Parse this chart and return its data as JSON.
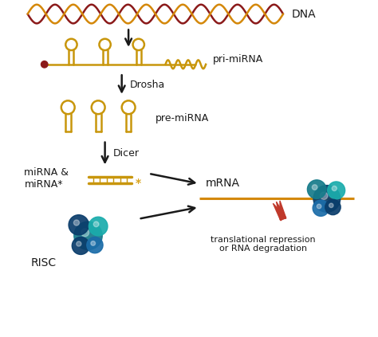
{
  "background_color": "#ffffff",
  "fig_width": 4.74,
  "fig_height": 4.23,
  "dpi": 100,
  "dna_color_orange": "#D4880A",
  "dna_color_red": "#8B1A1A",
  "gold_color": "#C8960C",
  "arrow_color": "#1a1a1a",
  "label_color": "#1a1a1a",
  "red_arrow_color": "#C0392B",
  "mRNA_line_color": "#D4880A",
  "risc_dark_blue": "#0A3D6B",
  "risc_mid_blue": "#1B6CA8",
  "risc_teal": "#167B7B",
  "risc_cyan": "#1AACAC",
  "risc_light_blue": "#2ABBE0",
  "labels": {
    "DNA": "DNA",
    "pri_miRNA": "pri-miRNA",
    "Drosha": "Drosha",
    "pre_miRNA": "pre-miRNA",
    "Dicer": "Dicer",
    "miRNA": "miRNA &\nmiRNA*",
    "mRNA": "mRNA",
    "RISC": "RISC",
    "translation": "translational repression\nor RNA degradation"
  },
  "font_size": 9
}
